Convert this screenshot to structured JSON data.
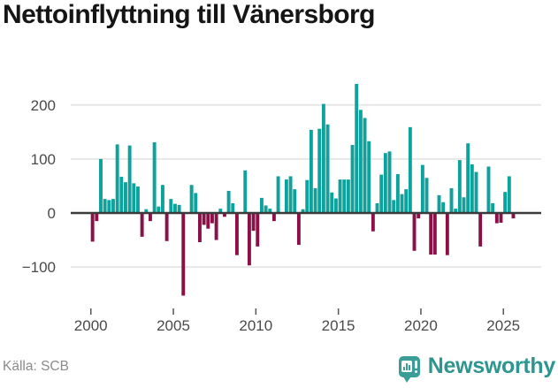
{
  "title": "Nettoinflyttning till Vänersborg",
  "footer": {
    "source": "Källa: SCB",
    "brand": "Newsworthy",
    "logo_icon": "bar-chart-exclamation-badge-icon"
  },
  "chart_data": {
    "type": "bar",
    "title": "Nettoinflyttning till Vänersborg",
    "xlabel": "",
    "ylabel": "",
    "frequency": "quarterly",
    "start_year": 2000,
    "start_quarter": 1,
    "x_ticks": [
      2000,
      2005,
      2010,
      2015,
      2020,
      2025
    ],
    "y_ticks": [
      200,
      100,
      0,
      -100
    ],
    "ylim": [
      -160,
      245
    ],
    "grid": true,
    "legend": "none",
    "colors": {
      "positive": "#0da29b",
      "negative": "#8c1048",
      "grid": "#e7e7e7",
      "axis": "#3a3a3a",
      "tick_label": "#4a4a4a",
      "tick_mark": "#555555",
      "brand_teal": "#3a9e97"
    },
    "values": [
      -53,
      -15,
      100,
      26,
      24,
      26,
      127,
      67,
      57,
      125,
      55,
      49,
      -44,
      7,
      -15,
      131,
      12,
      52,
      -52,
      26,
      17,
      15,
      -153,
      0,
      52,
      37,
      -54,
      -22,
      -29,
      -19,
      -50,
      8,
      -7,
      41,
      18,
      -78,
      0,
      79,
      -97,
      -33,
      -62,
      28,
      14,
      8,
      -15,
      68,
      0,
      62,
      68,
      44,
      -59,
      7,
      61,
      154,
      46,
      156,
      202,
      164,
      38,
      27,
      62,
      62,
      62,
      126,
      239,
      191,
      176,
      133,
      -34,
      18,
      71,
      111,
      114,
      24,
      72,
      35,
      44,
      159,
      -70,
      -10,
      89,
      65,
      -77,
      -77,
      33,
      20,
      -78,
      46,
      8,
      98,
      29,
      129,
      90,
      76,
      -62,
      0,
      86,
      18,
      -19,
      -18,
      39,
      68,
      -10
    ]
  }
}
